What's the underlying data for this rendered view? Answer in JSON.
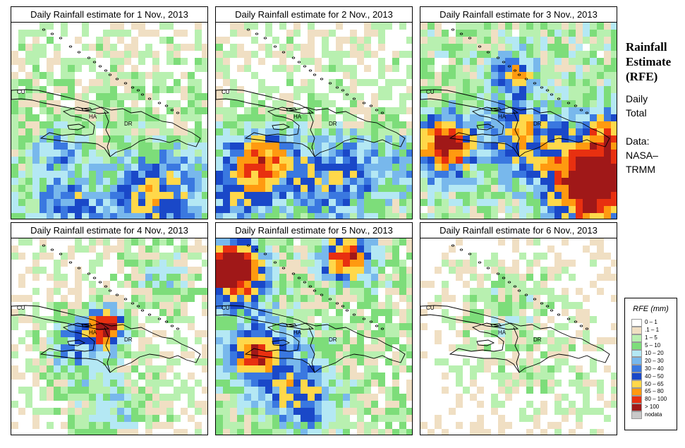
{
  "panels": [
    {
      "title": "Daily Rainfall estimate for  1 Nov., 2013",
      "seed": 11,
      "prof": "p1"
    },
    {
      "title": "Daily Rainfall estimate for  2 Nov., 2013",
      "seed": 23,
      "prof": "p2"
    },
    {
      "title": "Daily Rainfall estimate for  3 Nov., 2013",
      "seed": 37,
      "prof": "p3"
    },
    {
      "title": "Daily Rainfall estimate for  4 Nov., 2013",
      "seed": 41,
      "prof": "p4"
    },
    {
      "title": "Daily Rainfall estimate for  5 Nov., 2013",
      "seed": 53,
      "prof": "p5"
    },
    {
      "title": "Daily Rainfall estimate for  6 Nov., 2013",
      "seed": 67,
      "prof": "p6"
    }
  ],
  "map_labels": {
    "cuba": "CU",
    "haiti": "HA",
    "dominican_republic": "DR"
  },
  "sidebar": {
    "title_line1": "Rainfall",
    "title_line2": "Estimate",
    "title_line3": "(RFE)",
    "period_line1": "Daily",
    "period_line2": "Total",
    "data_line1": "Data:",
    "data_line2": "NASA–",
    "data_line3": "TRMM"
  },
  "legend": {
    "title": "RFE (mm)",
    "items": [
      {
        "label": "0 – 1",
        "color": "#ffffff"
      },
      {
        "label": ".1 – 1",
        "color": "#f0dfc3"
      },
      {
        "label": "1 – 5",
        "color": "#b8f0b0"
      },
      {
        "label": "5 – 10",
        "color": "#7ddd7a"
      },
      {
        "label": "10 – 20",
        "color": "#b4e8f4"
      },
      {
        "label": "20 – 30",
        "color": "#78b8ec"
      },
      {
        "label": "30 – 40",
        "color": "#3a78e0"
      },
      {
        "label": "40 – 50",
        "color": "#1a48c8"
      },
      {
        "label": "50 – 65",
        "color": "#ffd84a"
      },
      {
        "label": "65 – 80",
        "color": "#ff9a10"
      },
      {
        "label": "80 – 100",
        "color": "#e83010"
      },
      {
        "label": "> 100",
        "color": "#a01818"
      },
      {
        "label": "nodata",
        "color": "#c8c8c8"
      }
    ]
  }
}
